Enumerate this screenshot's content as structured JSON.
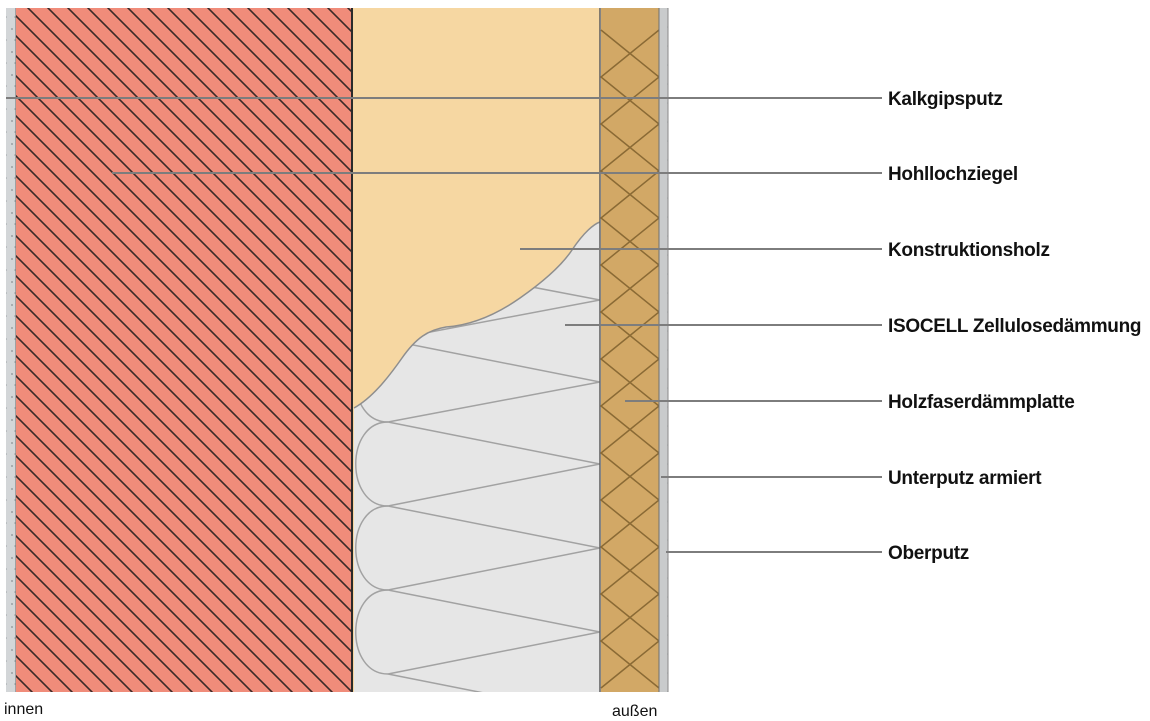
{
  "layers": [
    {
      "label": "Kalkgipsputz"
    },
    {
      "label": "Hohllochziegel"
    },
    {
      "label": "Konstruktionsholz"
    },
    {
      "label": "ISOCELL Zellulosedämmung"
    },
    {
      "label": "Holzfaserdämmplatte"
    },
    {
      "label": "Unterputz armiert"
    },
    {
      "label": "Oberputz"
    }
  ],
  "sides": {
    "inside": "innen",
    "outside": "außen"
  },
  "colors": {
    "plaster": "#d3d6d8",
    "brick": "#f08c7a",
    "brick_hatch": "#3a2a28",
    "timber": "#f6d7a2",
    "cellulose": "#e6e6e6",
    "fiberboard": "#d2a866",
    "render": "#c9cbcc",
    "leader": "#7d7d7d"
  }
}
